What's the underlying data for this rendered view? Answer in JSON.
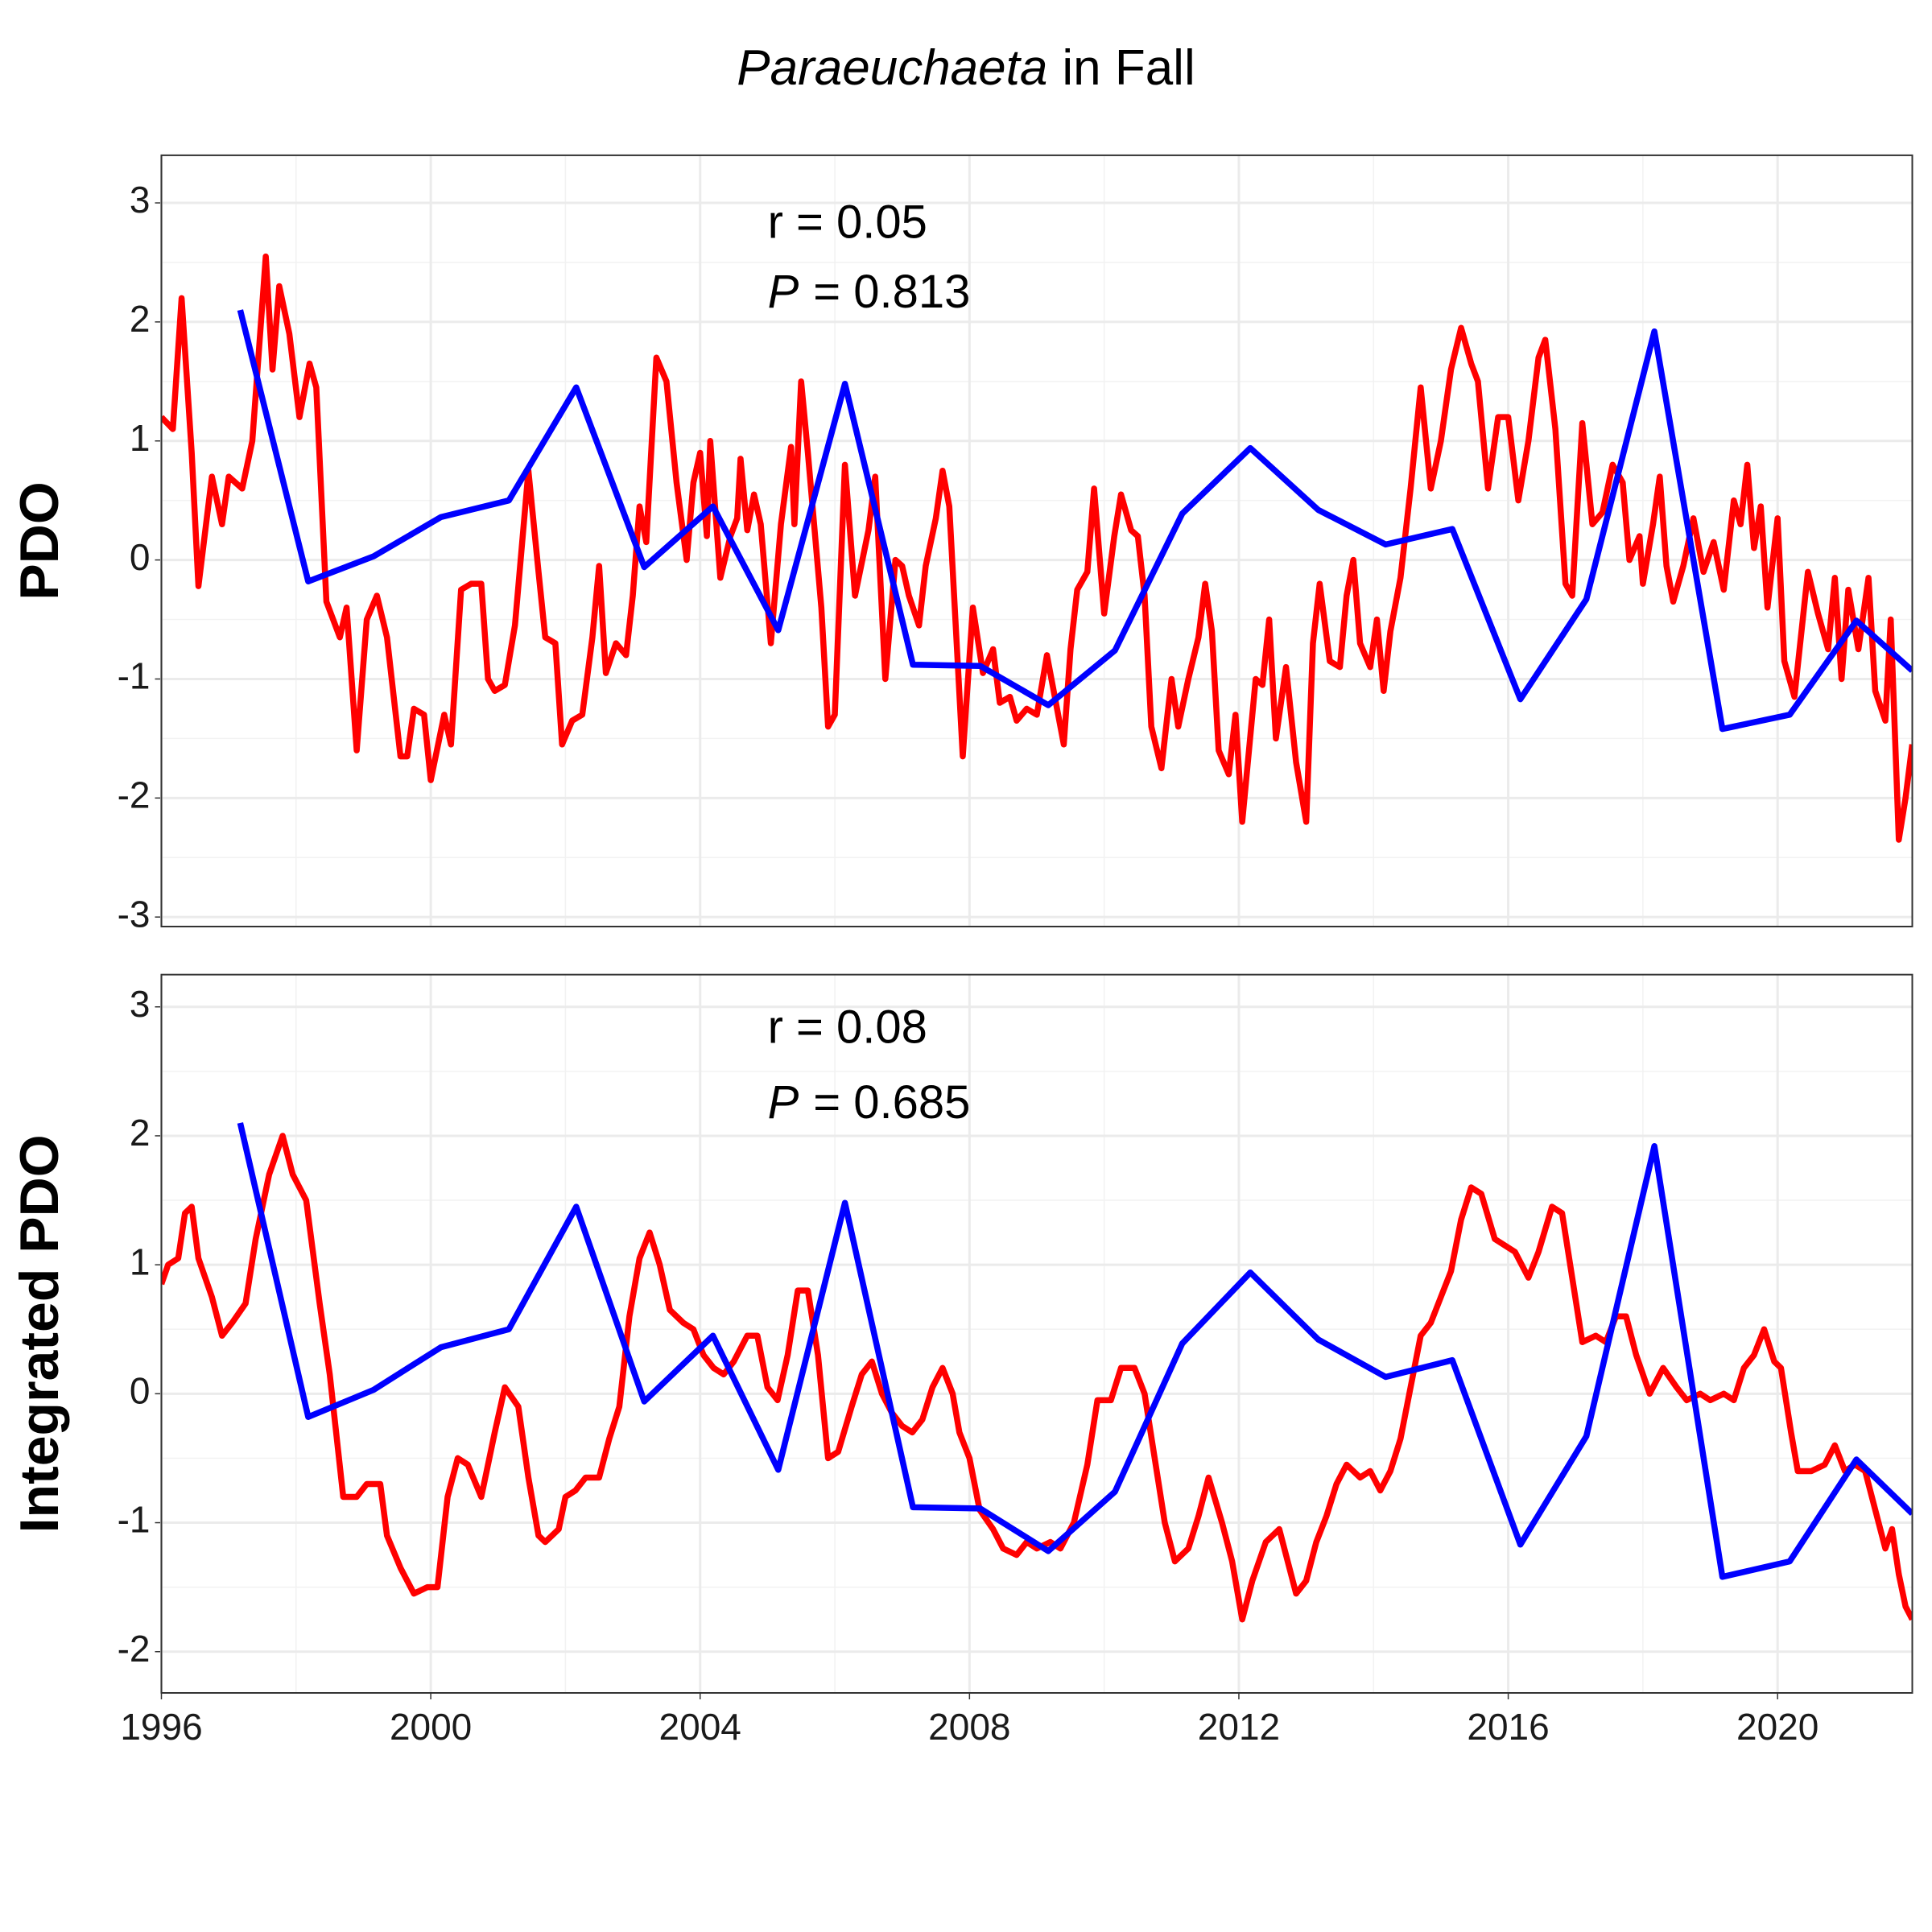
{
  "chart_data": [
    {
      "type": "line",
      "title": {
        "italic": "Paraeuchaeta",
        "rest": "in Fall"
      },
      "ylabel": "PDO",
      "annotations": [
        {
          "text": "r = 0.05"
        },
        {
          "italic": "P",
          "rest": "= 0.813"
        }
      ],
      "xlim": [
        1996,
        2022
      ],
      "xticks": [
        1996,
        2000,
        2004,
        2008,
        2012,
        2016,
        2020
      ],
      "show_xtick_labels": false,
      "ylim": [
        -3.08,
        3.4
      ],
      "yticks": [
        -3,
        -2,
        -1,
        0,
        1,
        2,
        3
      ],
      "grid": true,
      "series": [
        {
          "color": "#ff0000",
          "x": [
            1996.0,
            1996.17,
            1996.3,
            1996.45,
            1996.55,
            1996.75,
            1996.9,
            1997.0,
            1997.2,
            1997.35,
            1997.55,
            1997.65,
            1997.75,
            1997.9,
            1998.05,
            1998.2,
            1998.3,
            1998.45,
            1998.65,
            1998.75,
            1998.9,
            1999.05,
            1999.2,
            1999.35,
            1999.55,
            1999.65,
            1999.75,
            1999.9,
            2000.0,
            2000.2,
            2000.3,
            2000.45,
            2000.6,
            2000.75,
            2000.85,
            2000.95,
            2001.1,
            2001.25,
            2001.45,
            2001.6,
            2001.7,
            2001.85,
            2001.95,
            2002.1,
            2002.25,
            2002.4,
            2002.5,
            2002.6,
            2002.75,
            2002.9,
            2003.0,
            2003.1,
            2003.2,
            2003.35,
            2003.5,
            2003.65,
            2003.8,
            2003.9,
            2004.0,
            2004.1,
            2004.15,
            2004.3,
            2004.45,
            2004.55,
            2004.6,
            2004.7,
            2004.8,
            2004.9,
            2005.05,
            2005.2,
            2005.35,
            2005.4,
            2005.5,
            2005.6,
            2005.8,
            2005.9,
            2006.0,
            2006.15,
            2006.3,
            2006.5,
            2006.6,
            2006.75,
            2006.9,
            2007.0,
            2007.1,
            2007.25,
            2007.35,
            2007.5,
            2007.6,
            2007.7,
            2007.9,
            2008.05,
            2008.2,
            2008.35,
            2008.45,
            2008.6,
            2008.7,
            2008.85,
            2009.0,
            2009.15,
            2009.3,
            2009.4,
            2009.5,
            2009.6,
            2009.75,
            2009.85,
            2010.0,
            2010.15,
            2010.25,
            2010.4,
            2010.5,
            2010.6,
            2010.7,
            2010.85,
            2011.0,
            2011.1,
            2011.25,
            2011.4,
            2011.5,
            2011.6,
            2011.7,
            2011.85,
            2011.95,
            2012.05,
            2012.25,
            2012.35,
            2012.45,
            2012.55,
            2012.7,
            2012.85,
            2013.0,
            2013.1,
            2013.2,
            2013.35,
            2013.5,
            2013.6,
            2013.7,
            2013.8,
            2013.95,
            2014.05,
            2014.15,
            2014.25,
            2014.4,
            2014.55,
            2014.7,
            2014.85,
            2015.0,
            2015.15,
            2015.3,
            2015.45,
            2015.55,
            2015.7,
            2015.85,
            2016.0,
            2016.15,
            2016.3,
            2016.45,
            2016.55,
            2016.7,
            2016.85,
            2016.95,
            2017.1,
            2017.25,
            2017.4,
            2017.55,
            2017.7,
            2017.8,
            2017.95,
            2018.0,
            2018.15,
            2018.25,
            2018.35,
            2018.45,
            2018.6,
            2018.75,
            2018.9,
            2019.05,
            2019.2,
            2019.35,
            2019.45,
            2019.55,
            2019.65,
            2019.75,
            2019.85,
            2020.0,
            2020.1,
            2020.25,
            2020.45,
            2020.6,
            2020.75,
            2020.85,
            2020.95,
            2021.05,
            2021.2,
            2021.35,
            2021.45,
            2021.6,
            2021.68,
            2021.8,
            2021.9,
            2022.0
          ],
          "values": [
            1.2,
            1.1,
            2.2,
            0.9,
            -0.22,
            0.7,
            0.3,
            0.7,
            0.6,
            1.0,
            2.55,
            1.6,
            2.3,
            1.9,
            1.2,
            1.65,
            1.45,
            -0.35,
            -0.65,
            -0.4,
            -1.6,
            -0.5,
            -0.3,
            -0.65,
            -1.65,
            -1.65,
            -1.25,
            -1.3,
            -1.85,
            -1.3,
            -1.55,
            -0.25,
            -0.2,
            -0.2,
            -1.0,
            -1.1,
            -1.05,
            -0.55,
            0.75,
            -0.1,
            -0.65,
            -0.7,
            -1.55,
            -1.35,
            -1.3,
            -0.65,
            -0.05,
            -0.95,
            -0.7,
            -0.8,
            -0.3,
            0.45,
            0.15,
            1.7,
            1.5,
            0.65,
            0.0,
            0.65,
            0.9,
            0.2,
            1.0,
            -0.15,
            0.2,
            0.35,
            0.85,
            0.25,
            0.55,
            0.3,
            -0.7,
            0.3,
            0.95,
            0.3,
            1.5,
            0.9,
            -0.4,
            -1.4,
            -1.3,
            0.8,
            -0.3,
            0.25,
            0.7,
            -1.0,
            0.0,
            -0.05,
            -0.3,
            -0.55,
            -0.05,
            0.35,
            0.75,
            0.45,
            -1.65,
            -0.4,
            -0.95,
            -0.75,
            -1.2,
            -1.15,
            -1.35,
            -1.25,
            -1.3,
            -0.8,
            -1.25,
            -1.55,
            -0.75,
            -0.25,
            -0.1,
            0.6,
            -0.45,
            0.2,
            0.55,
            0.25,
            0.2,
            -0.3,
            -1.4,
            -1.75,
            -1.0,
            -1.4,
            -1.0,
            -0.65,
            -0.2,
            -0.6,
            -1.6,
            -1.8,
            -1.3,
            -2.2,
            -1.0,
            -1.05,
            -0.5,
            -1.5,
            -0.9,
            -1.7,
            -2.2,
            -0.7,
            -0.2,
            -0.85,
            -0.9,
            -0.3,
            0.0,
            -0.7,
            -0.9,
            -0.5,
            -1.1,
            -0.6,
            -0.15,
            0.6,
            1.45,
            0.6,
            1.0,
            1.6,
            1.95,
            1.65,
            1.5,
            0.6,
            1.2,
            1.2,
            0.5,
            1.0,
            1.7,
            1.85,
            1.1,
            -0.2,
            -0.3,
            1.15,
            0.3,
            0.4,
            0.8,
            0.65,
            0.0,
            0.2,
            -0.2,
            0.3,
            0.7,
            -0.05,
            -0.35,
            -0.05,
            0.35,
            -0.1,
            0.15,
            -0.25,
            0.5,
            0.3,
            0.8,
            0.1,
            0.45,
            -0.4,
            0.35,
            -0.85,
            -1.15,
            -0.1,
            -0.45,
            -0.75,
            -0.15,
            -1.0,
            -0.25,
            -0.75,
            -0.15,
            -1.1,
            -1.35,
            -0.5,
            -2.35,
            -2.0,
            -1.55
          ]
        },
        {
          "color": "#0000ff",
          "x": [
            1997.17,
            1998.18,
            1999.15,
            2000.15,
            2001.16,
            2002.16,
            2003.17,
            2004.19,
            2005.16,
            2006.15,
            2007.16,
            2008.16,
            2009.17,
            2010.16,
            2011.16,
            2012.17,
            2013.18,
            2014.18,
            2015.17,
            2016.18,
            2017.16,
            2018.17,
            2019.18,
            2020.18,
            2021.17,
            2022.0
          ],
          "values": [
            2.1,
            -0.18,
            0.03,
            0.36,
            0.5,
            1.45,
            -0.06,
            0.45,
            -0.59,
            1.48,
            -0.88,
            -0.89,
            -1.22,
            -0.76,
            0.39,
            0.94,
            0.42,
            0.13,
            0.26,
            -1.17,
            -0.33,
            1.92,
            -1.42,
            -1.3,
            -0.51,
            -0.93
          ]
        }
      ]
    },
    {
      "type": "line",
      "ylabel": "Integrated PDO",
      "annotations": [
        {
          "text": "r = 0.08"
        },
        {
          "italic": "P",
          "rest": "= 0.685"
        }
      ],
      "xlim": [
        1996,
        2022
      ],
      "xticks": [
        1996,
        2000,
        2004,
        2008,
        2012,
        2016,
        2020
      ],
      "show_xtick_labels": true,
      "ylim": [
        -2.32,
        3.25
      ],
      "yticks": [
        -2,
        -1,
        0,
        1,
        2,
        3
      ],
      "grid": true,
      "series": [
        {
          "color": "#ff0000",
          "x": [
            1996.0,
            1996.1,
            1996.25,
            1996.35,
            1996.45,
            1996.55,
            1996.75,
            1996.9,
            1997.05,
            1997.25,
            1997.4,
            1997.6,
            1997.8,
            1997.95,
            1998.15,
            1998.35,
            1998.5,
            1998.7,
            1998.9,
            1999.05,
            1999.25,
            1999.35,
            1999.55,
            1999.75,
            1999.95,
            2000.1,
            2000.25,
            2000.4,
            2000.55,
            2000.75,
            2000.95,
            2001.1,
            2001.3,
            2001.45,
            2001.6,
            2001.7,
            2001.9,
            2002.0,
            2002.15,
            2002.3,
            2002.5,
            2002.65,
            2002.8,
            2002.95,
            2003.1,
            2003.25,
            2003.4,
            2003.55,
            2003.75,
            2003.9,
            2004.05,
            2004.2,
            2004.35,
            2004.5,
            2004.7,
            2004.85,
            2005.0,
            2005.15,
            2005.3,
            2005.45,
            2005.6,
            2005.75,
            2005.9,
            2006.05,
            2006.25,
            2006.4,
            2006.55,
            2006.7,
            2006.85,
            2007.0,
            2007.15,
            2007.3,
            2007.45,
            2007.6,
            2007.75,
            2007.85,
            2008.0,
            2008.15,
            2008.35,
            2008.5,
            2008.7,
            2008.85,
            2009.0,
            2009.2,
            2009.35,
            2009.55,
            2009.75,
            2009.9,
            2010.1,
            2010.25,
            2010.45,
            2010.6,
            2010.75,
            2010.9,
            2011.05,
            2011.25,
            2011.4,
            2011.55,
            2011.75,
            2011.9,
            2012.05,
            2012.2,
            2012.4,
            2012.6,
            2012.75,
            2012.85,
            2013.0,
            2013.15,
            2013.3,
            2013.45,
            2013.6,
            2013.8,
            2013.95,
            2014.1,
            2014.25,
            2014.4,
            2014.55,
            2014.7,
            2014.85,
            2015.0,
            2015.15,
            2015.3,
            2015.45,
            2015.6,
            2015.8,
            2015.95,
            2016.1,
            2016.3,
            2016.45,
            2016.65,
            2016.8,
            2016.95,
            2017.1,
            2017.3,
            2017.45,
            2017.6,
            2017.75,
            2017.9,
            2018.1,
            2018.3,
            2018.5,
            2018.65,
            2018.85,
            2019.0,
            2019.2,
            2019.35,
            2019.5,
            2019.65,
            2019.8,
            2019.95,
            2020.05,
            2020.2,
            2020.3,
            2020.5,
            2020.7,
            2020.85,
            2021.0,
            2021.15,
            2021.3,
            2021.45,
            2021.6,
            2021.7,
            2021.8,
            2021.9,
            2022.0
          ],
          "values": [
            0.85,
            1.0,
            1.05,
            1.4,
            1.45,
            1.05,
            0.75,
            0.45,
            0.55,
            0.7,
            1.2,
            1.7,
            2.0,
            1.7,
            1.5,
            0.7,
            0.15,
            -0.8,
            -0.8,
            -0.7,
            -0.7,
            -1.1,
            -1.35,
            -1.55,
            -1.5,
            -1.5,
            -0.8,
            -0.5,
            -0.55,
            -0.8,
            -0.3,
            0.05,
            -0.1,
            -0.65,
            -1.1,
            -1.15,
            -1.05,
            -0.8,
            -0.75,
            -0.65,
            -0.65,
            -0.35,
            -0.1,
            0.6,
            1.05,
            1.25,
            1.0,
            0.65,
            0.55,
            0.5,
            0.3,
            0.2,
            0.15,
            0.25,
            0.45,
            0.45,
            0.05,
            -0.05,
            0.3,
            0.8,
            0.8,
            0.3,
            -0.5,
            -0.45,
            -0.1,
            0.15,
            0.25,
            0.0,
            -0.15,
            -0.25,
            -0.3,
            -0.2,
            0.05,
            0.2,
            0.0,
            -0.3,
            -0.5,
            -0.9,
            -1.05,
            -1.2,
            -1.25,
            -1.15,
            -1.2,
            -1.15,
            -1.2,
            -1.0,
            -0.55,
            -0.05,
            -0.05,
            0.2,
            0.2,
            0.0,
            -0.5,
            -1.0,
            -1.3,
            -1.2,
            -0.95,
            -0.65,
            -1.0,
            -1.3,
            -1.75,
            -1.45,
            -1.15,
            -1.05,
            -1.35,
            -1.55,
            -1.45,
            -1.15,
            -0.95,
            -0.7,
            -0.55,
            -0.65,
            -0.6,
            -0.75,
            -0.6,
            -0.35,
            0.05,
            0.45,
            0.55,
            0.75,
            0.95,
            1.35,
            1.6,
            1.55,
            1.2,
            1.15,
            1.1,
            0.9,
            1.1,
            1.45,
            1.4,
            0.9,
            0.4,
            0.45,
            0.4,
            0.6,
            0.6,
            0.3,
            0.0,
            0.2,
            0.05,
            -0.05,
            0.0,
            -0.05,
            0.0,
            -0.05,
            0.2,
            0.3,
            0.5,
            0.25,
            0.2,
            -0.3,
            -0.6,
            -0.6,
            -0.55,
            -0.4,
            -0.6,
            -0.55,
            -0.6,
            -0.9,
            -1.2,
            -1.05,
            -1.4,
            -1.65,
            -1.75
          ]
        },
        {
          "color": "#0000ff",
          "x": [
            1997.17,
            1998.18,
            1999.15,
            2000.15,
            2001.16,
            2002.16,
            2003.17,
            2004.19,
            2005.16,
            2006.15,
            2007.16,
            2008.16,
            2009.17,
            2010.16,
            2011.16,
            2012.17,
            2013.18,
            2014.18,
            2015.17,
            2016.18,
            2017.16,
            2018.17,
            2019.18,
            2020.18,
            2021.17,
            2022.0
          ],
          "values": [
            2.1,
            -0.18,
            0.03,
            0.36,
            0.5,
            1.45,
            -0.06,
            0.45,
            -0.59,
            1.48,
            -0.88,
            -0.89,
            -1.22,
            -0.76,
            0.39,
            0.94,
            0.42,
            0.13,
            0.26,
            -1.17,
            -0.33,
            1.92,
            -1.42,
            -1.3,
            -0.51,
            -0.93
          ]
        }
      ]
    }
  ]
}
